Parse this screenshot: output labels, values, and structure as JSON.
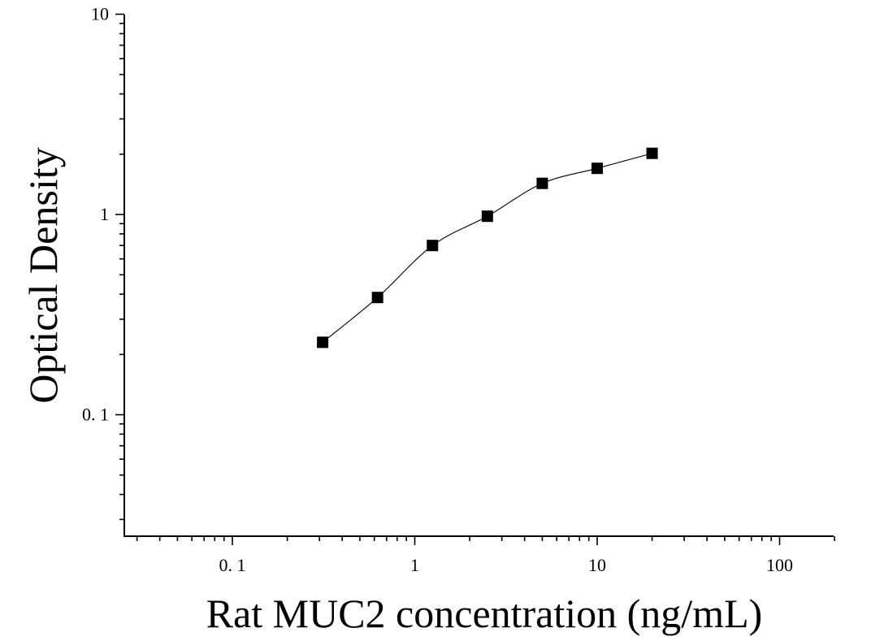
{
  "chart_data": {
    "type": "scatter",
    "xlabel": "Rat MUC2 concentration (ng/mL)",
    "ylabel": "Optical Density",
    "x_scale": "log",
    "y_scale": "log",
    "xlim": [
      0.025,
      200
    ],
    "ylim": [
      0.025,
      10
    ],
    "x_tick_labels": [
      {
        "value": 0.1,
        "label": "0. 1"
      },
      {
        "value": 1,
        "label": "1"
      },
      {
        "value": 10,
        "label": "10"
      },
      {
        "value": 100,
        "label": "100"
      }
    ],
    "y_tick_labels": [
      {
        "value": 0.1,
        "label": "0. 1"
      },
      {
        "value": 1,
        "label": "1"
      },
      {
        "value": 10,
        "label": "10"
      }
    ],
    "grid": false,
    "series": [
      {
        "marker": "square",
        "color": "#000000",
        "fit": "smooth-curve",
        "x": [
          0.3125,
          0.625,
          1.25,
          2.5,
          5,
          10,
          20
        ],
        "y": [
          0.23,
          0.385,
          0.7,
          0.98,
          1.43,
          1.7,
          2.02
        ]
      }
    ]
  }
}
